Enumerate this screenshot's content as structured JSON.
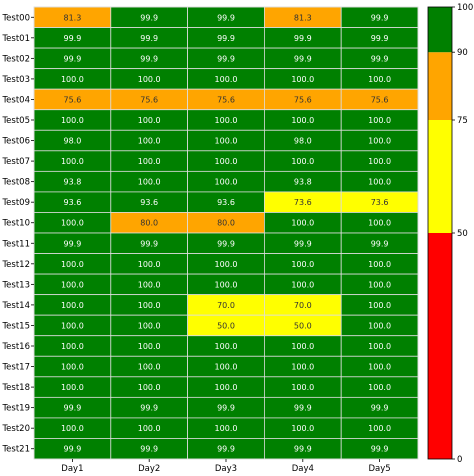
{
  "chart_data": {
    "type": "heatmap",
    "title": "",
    "xlabel": "",
    "ylabel": "",
    "columns": [
      "Day1",
      "Day2",
      "Day3",
      "Day4",
      "Day5"
    ],
    "rows": [
      "Test00",
      "Test01",
      "Test02",
      "Test03",
      "Test04",
      "Test05",
      "Test06",
      "Test07",
      "Test08",
      "Test09",
      "Test10",
      "Test11",
      "Test12",
      "Test13",
      "Test14",
      "Test15",
      "Test16",
      "Test17",
      "Test18",
      "Test19",
      "Test20",
      "Test21"
    ],
    "values": [
      [
        81.3,
        99.9,
        99.9,
        81.3,
        99.9
      ],
      [
        99.9,
        99.9,
        99.9,
        99.9,
        99.9
      ],
      [
        99.9,
        99.9,
        99.9,
        99.9,
        99.9
      ],
      [
        100.0,
        100.0,
        100.0,
        100.0,
        100.0
      ],
      [
        75.6,
        75.6,
        75.6,
        75.6,
        75.6
      ],
      [
        100.0,
        100.0,
        100.0,
        100.0,
        100.0
      ],
      [
        98.0,
        100.0,
        100.0,
        98.0,
        100.0
      ],
      [
        100.0,
        100.0,
        100.0,
        100.0,
        100.0
      ],
      [
        93.8,
        100.0,
        100.0,
        93.8,
        100.0
      ],
      [
        93.6,
        93.6,
        93.6,
        73.6,
        73.6
      ],
      [
        100.0,
        80.0,
        80.0,
        100.0,
        100.0
      ],
      [
        99.9,
        99.9,
        99.9,
        99.9,
        99.9
      ],
      [
        100.0,
        100.0,
        100.0,
        100.0,
        100.0
      ],
      [
        100.0,
        100.0,
        100.0,
        100.0,
        100.0
      ],
      [
        100.0,
        100.0,
        70.0,
        70.0,
        100.0
      ],
      [
        100.0,
        100.0,
        50.0,
        50.0,
        100.0
      ],
      [
        100.0,
        100.0,
        100.0,
        100.0,
        100.0
      ],
      [
        100.0,
        100.0,
        100.0,
        100.0,
        100.0
      ],
      [
        100.0,
        100.0,
        100.0,
        100.0,
        100.0
      ],
      [
        99.9,
        99.9,
        99.9,
        99.9,
        99.9
      ],
      [
        100.0,
        100.0,
        100.0,
        100.0,
        100.0
      ],
      [
        99.9,
        99.9,
        99.9,
        99.9,
        99.9
      ]
    ],
    "value_format": "one-decimal",
    "colorbar": {
      "range": [
        0,
        100
      ],
      "bands": [
        {
          "from": 0,
          "to": 50,
          "color": "#ff0000"
        },
        {
          "from": 50,
          "to": 75,
          "color": "#ffff00"
        },
        {
          "from": 75,
          "to": 90,
          "color": "#ffa500"
        },
        {
          "from": 90,
          "to": 100,
          "color": "#008000"
        }
      ],
      "ticks": [
        "0",
        "50",
        "75",
        "90",
        "100"
      ],
      "placement": "right"
    },
    "colors": {
      "low": "#ff0000",
      "mid": "#ffff00",
      "high": "#ffa500",
      "top": "#008000",
      "grid_line": "#dddddd"
    }
  }
}
